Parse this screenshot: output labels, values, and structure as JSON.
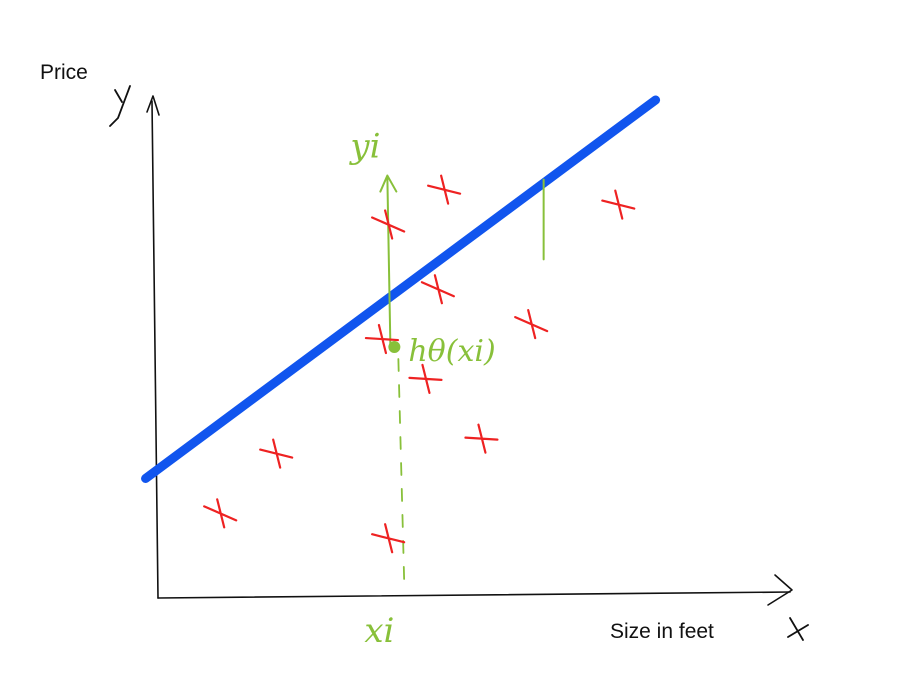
{
  "colors": {
    "axis": "#111111",
    "fit_line": "#1155ee",
    "data_points": "#ee2222",
    "annotation": "#88c03a",
    "background": "#ffffff"
  },
  "chart_data": {
    "type": "scatter",
    "title": "",
    "xlabel": "Size in feet",
    "ylabel": "Price",
    "axis_letters": {
      "x": "x",
      "y": "y"
    },
    "grid": false,
    "legend": "none",
    "xlim": [
      0,
      10
    ],
    "ylim": [
      0,
      10
    ],
    "points": [
      {
        "x": 1.0,
        "y": 1.7
      },
      {
        "x": 1.9,
        "y": 2.9
      },
      {
        "x": 3.6,
        "y": 5.2
      },
      {
        "x": 3.7,
        "y": 7.5
      },
      {
        "x": 3.7,
        "y": 1.2
      },
      {
        "x": 4.3,
        "y": 4.4
      },
      {
        "x": 4.5,
        "y": 6.2
      },
      {
        "x": 4.6,
        "y": 8.2
      },
      {
        "x": 5.2,
        "y": 3.2
      },
      {
        "x": 6.0,
        "y": 5.5
      },
      {
        "x": 7.4,
        "y": 7.9
      }
    ],
    "fit_line": {
      "x": [
        -0.2,
        8.0
      ],
      "y": [
        2.4,
        10.0
      ]
    },
    "annotation": {
      "x_i": 3.8,
      "y_i": 7.8,
      "h_theta_x_i": 5.0,
      "labels": {
        "y_i": "yi",
        "x_i": "xi",
        "prediction": "hθ(xi)"
      }
    },
    "residual": {
      "x": 6.2,
      "y_from": 6.8,
      "y_to": 8.4
    }
  }
}
